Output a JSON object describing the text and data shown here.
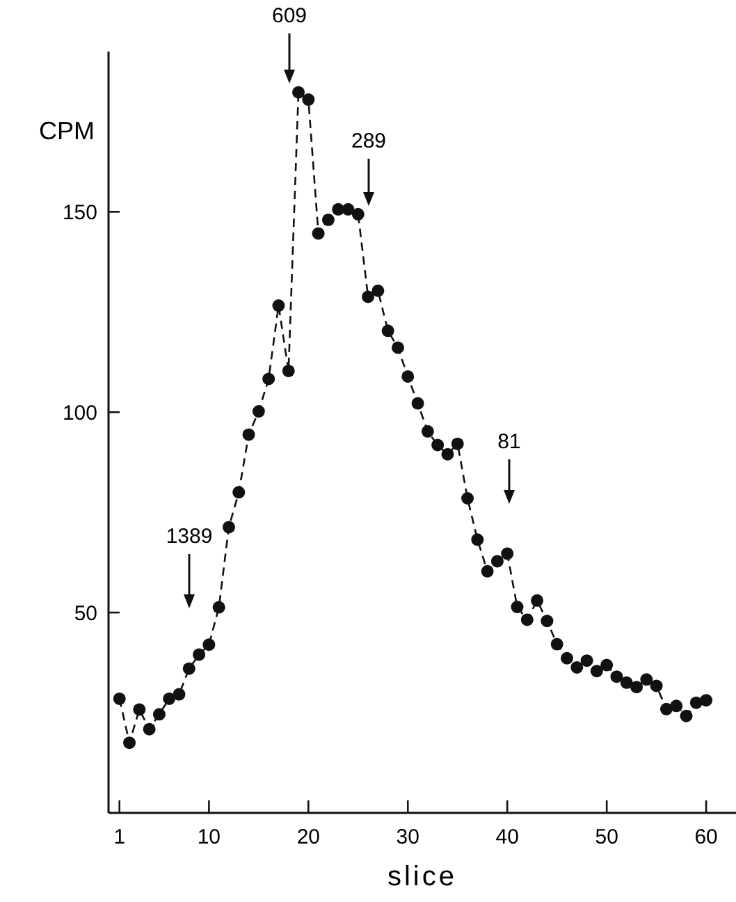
{
  "chart_data": {
    "type": "line",
    "xlabel": "slice",
    "ylabel": "CPM",
    "x": [
      1,
      2,
      3,
      4,
      5,
      6,
      7,
      8,
      9,
      10,
      11,
      12,
      13,
      14,
      15,
      16,
      17,
      18,
      19,
      20,
      21,
      22,
      23,
      24,
      25,
      26,
      27,
      28,
      29,
      30,
      31,
      32,
      33,
      34,
      35,
      36,
      37,
      38,
      39,
      40,
      41,
      42,
      43,
      44,
      45,
      46,
      47,
      48,
      49,
      50,
      51,
      52,
      53,
      54,
      55,
      56,
      57,
      58,
      59,
      60
    ],
    "series": [
      {
        "color": "#111111",
        "values": [
          28.5,
          17.5,
          25.8,
          20.9,
          24.6,
          28.5,
          29.6,
          36,
          39.5,
          42,
          51.3,
          71.3,
          80,
          94.4,
          100.2,
          108.3,
          126.6,
          110.3,
          179.8,
          178,
          144.6,
          148,
          150.6,
          150.6,
          149.4,
          128.8,
          130.3,
          120.3,
          116.1,
          108.9,
          102.2,
          95.2,
          91.8,
          89.5,
          92.1,
          78.5,
          68.2,
          60.3,
          62.8,
          64.7,
          51.4,
          48.2,
          53,
          47.9,
          42.1,
          38.6,
          36.3,
          38,
          35.4,
          36.9,
          34,
          32.5,
          31.4,
          33.3,
          31.7,
          25.9,
          26.7,
          24.2,
          27.5,
          28.1
        ]
      }
    ],
    "xlim": [
      -0.1,
      63
    ],
    "xticks": [
      1,
      10,
      20,
      30,
      40,
      50,
      60
    ],
    "ylim": [
      0,
      190
    ],
    "yticks": [
      50,
      100,
      150
    ],
    "grid": false,
    "marker": "circle",
    "line_style": "dashed",
    "annotations": [
      "1389",
      "609",
      "289",
      "81"
    ]
  }
}
